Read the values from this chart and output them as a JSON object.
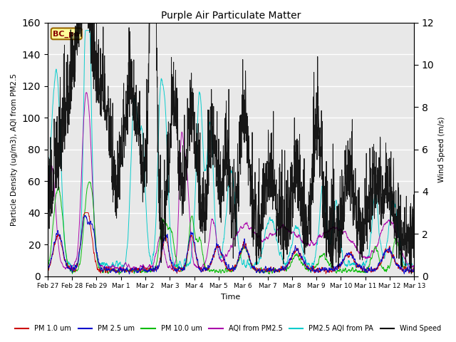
{
  "title": "Purple Air Particulate Matter",
  "ylabel_left": "Particle Density (ug/m3), AQI from PM2.5",
  "ylabel_right": "Wind Speed (m/s)",
  "xlabel": "Time",
  "ylim_left": [
    0,
    160
  ],
  "ylim_right": [
    0,
    12
  ],
  "yticks_left": [
    0,
    20,
    40,
    60,
    80,
    100,
    120,
    140,
    160
  ],
  "yticks_right": [
    0,
    2,
    4,
    6,
    8,
    10,
    12
  ],
  "xtick_labels": [
    "Feb 27",
    "Feb 28",
    "Feb 29",
    "Mar 1",
    "Mar 2",
    "Mar 3",
    "Mar 4",
    "Mar 5",
    "Mar 6",
    "Mar 7",
    "Mar 8",
    "Mar 9",
    "Mar 10",
    "Mar 11",
    "Mar 12",
    "Mar 13"
  ],
  "annotation_text": "BC_pa",
  "annotation_facecolor": "#FFFF99",
  "annotation_edgecolor": "#996600",
  "colors": {
    "pm1": "#CC0000",
    "pm25": "#0000CC",
    "pm10": "#00BB00",
    "aqi_pm25": "#AA00AA",
    "aqi_pa": "#00CCCC",
    "wind": "#000000"
  },
  "legend_labels": [
    "PM 1.0 um",
    "PM 2.5 um",
    "PM 10.0 um",
    "AQI from PM2.5",
    "PM2.5 AQI from PA",
    "Wind Speed"
  ],
  "background_color": "#E8E8E8",
  "grid_color": "#FFFFFF",
  "n_points": 2000,
  "seed": 17
}
